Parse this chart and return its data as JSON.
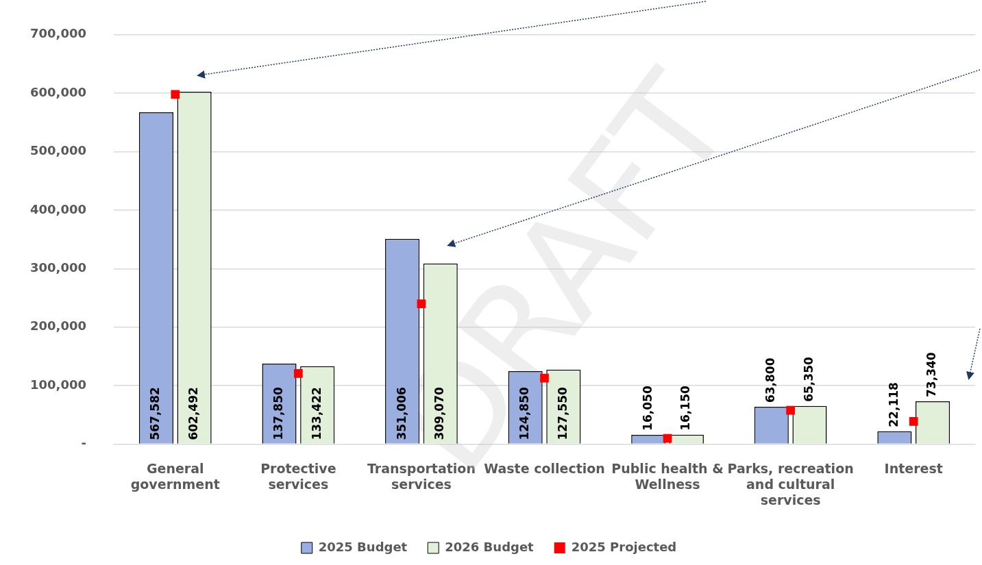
{
  "chart_data": {
    "type": "bar",
    "categories": [
      "General government",
      "Protective services",
      "Transportation services",
      "Waste collection",
      "Public health & Wellness",
      "Parks, recreation and cultural services",
      "Interest"
    ],
    "series": [
      {
        "name": "2025 Budget",
        "color": "#9aaee0",
        "values": [
          567582,
          137850,
          351006,
          124850,
          16050,
          63800,
          22118
        ],
        "value_labels": [
          "567,582",
          "137,850",
          "351,006",
          "124,850",
          "16,050",
          "63,800",
          "22,118"
        ]
      },
      {
        "name": "2026 Budget",
        "color": "#e2f0d9",
        "values": [
          602492,
          133422,
          309070,
          127550,
          16150,
          65350,
          73340
        ],
        "value_labels": [
          "602,492",
          "133,422",
          "309,070",
          "127,550",
          "16,150",
          "65,350",
          "73,340"
        ]
      },
      {
        "name": "2025 Projected",
        "type": "scatter",
        "marker": "square",
        "color": "#ff0000",
        "values": [
          598000,
          121000,
          240000,
          113000,
          10000,
          58000,
          39000
        ]
      }
    ],
    "ylim": [
      0,
      700000
    ],
    "yticks": [
      {
        "value": 0,
        "label": "-"
      },
      {
        "value": 100000,
        "label": "100,000"
      },
      {
        "value": 200000,
        "label": "200,000"
      },
      {
        "value": 300000,
        "label": "300,000"
      },
      {
        "value": 400000,
        "label": "400,000"
      },
      {
        "value": 500000,
        "label": "500,000"
      },
      {
        "value": 600000,
        "label": "600,000"
      },
      {
        "value": 700000,
        "label": "700,000"
      }
    ],
    "grid": "y",
    "legend": "bottom",
    "annotations": [
      "DRAFT"
    ]
  }
}
